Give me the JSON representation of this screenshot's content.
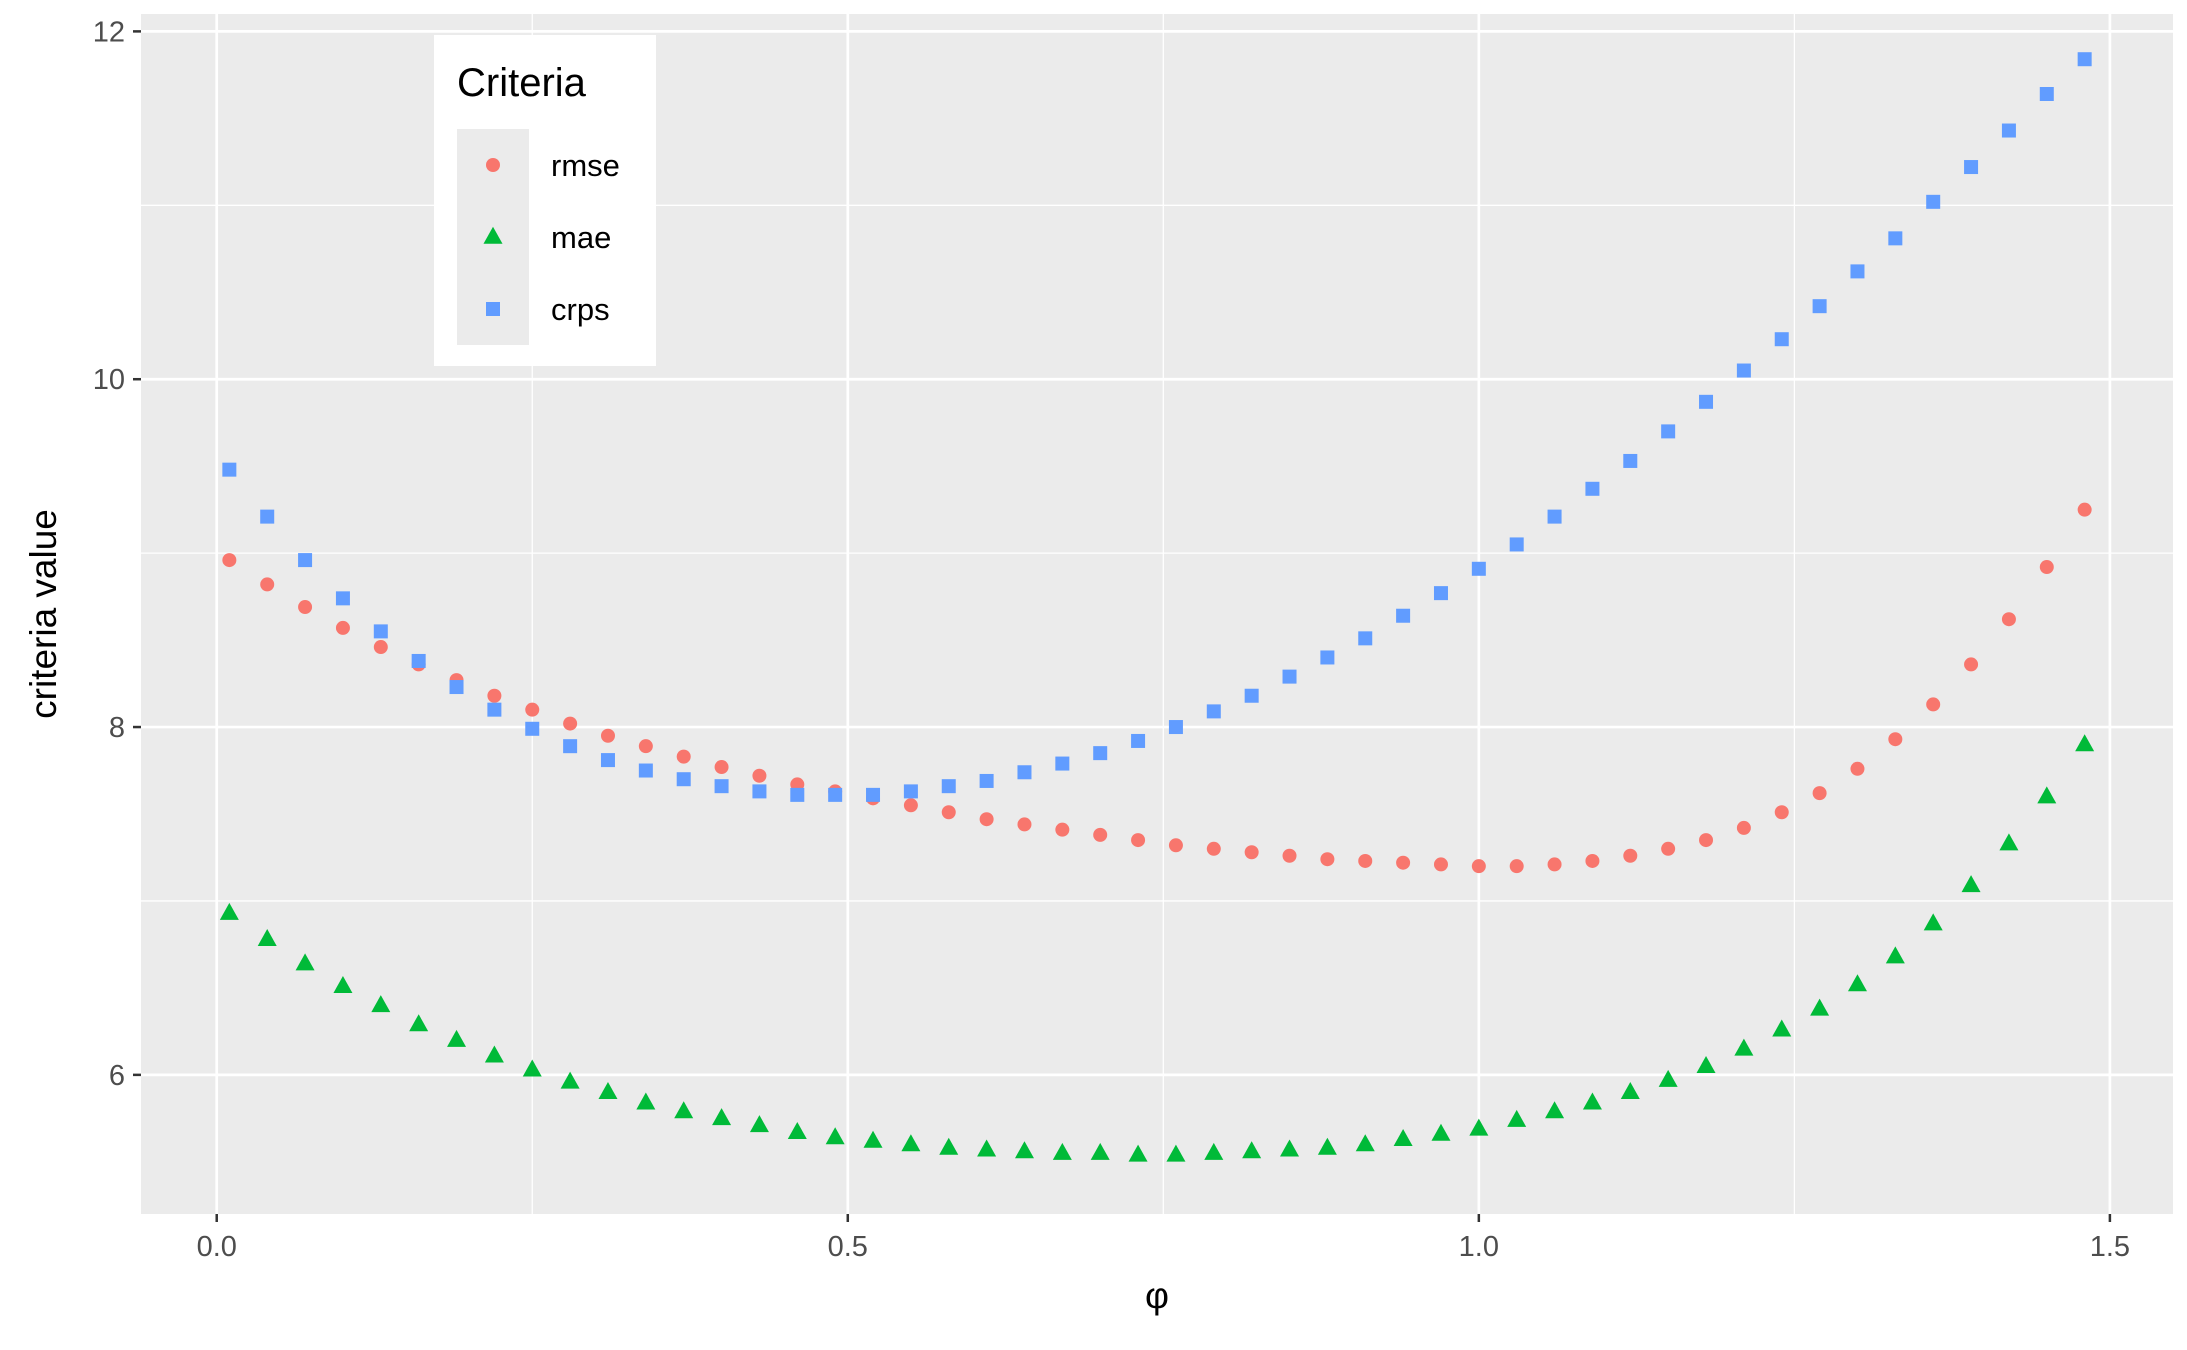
{
  "chart_data": {
    "type": "scatter",
    "xlabel": "φ",
    "ylabel": "criteria value",
    "xlim": [
      -0.06,
      1.55
    ],
    "ylim": [
      5.2,
      12.1
    ],
    "x_ticks": [
      0.0,
      0.5,
      1.0,
      1.5
    ],
    "x_tick_labels": [
      "0.0",
      "0.5",
      "1.0",
      "1.5"
    ],
    "y_ticks": [
      6,
      8,
      10,
      12
    ],
    "y_tick_labels": [
      "6",
      "8",
      "10",
      "12"
    ],
    "grid": true,
    "legend": {
      "title": "Criteria",
      "placement": "top-left"
    },
    "x": [
      0.01,
      0.04,
      0.07,
      0.1,
      0.13,
      0.16,
      0.19,
      0.22,
      0.25,
      0.28,
      0.31,
      0.34,
      0.37,
      0.4,
      0.43,
      0.46,
      0.49,
      0.52,
      0.55,
      0.58,
      0.61,
      0.64,
      0.67,
      0.7,
      0.73,
      0.76,
      0.79,
      0.82,
      0.85,
      0.88,
      0.91,
      0.94,
      0.97,
      1.0,
      1.03,
      1.06,
      1.09,
      1.12,
      1.15,
      1.18,
      1.21,
      1.24,
      1.27,
      1.3,
      1.33,
      1.36,
      1.39,
      1.42,
      1.45,
      1.48
    ],
    "series": [
      {
        "name": "rmse",
        "shape": "circle",
        "color": "#F8766D",
        "values": [
          8.96,
          8.82,
          8.69,
          8.57,
          8.46,
          8.36,
          8.27,
          8.18,
          8.1,
          8.02,
          7.95,
          7.89,
          7.83,
          7.77,
          7.72,
          7.67,
          7.63,
          7.59,
          7.55,
          7.51,
          7.47,
          7.44,
          7.41,
          7.38,
          7.35,
          7.32,
          7.3,
          7.28,
          7.26,
          7.24,
          7.23,
          7.22,
          7.21,
          7.2,
          7.2,
          7.21,
          7.23,
          7.26,
          7.3,
          7.35,
          7.42,
          7.51,
          7.62,
          7.76,
          7.93,
          8.13,
          8.36,
          8.62,
          8.92,
          9.25
        ]
      },
      {
        "name": "mae",
        "shape": "triangle",
        "color": "#00BA38",
        "values": [
          6.93,
          6.78,
          6.64,
          6.51,
          6.4,
          6.29,
          6.2,
          6.11,
          6.03,
          5.96,
          5.9,
          5.84,
          5.79,
          5.75,
          5.71,
          5.67,
          5.64,
          5.62,
          5.6,
          5.58,
          5.57,
          5.56,
          5.55,
          5.55,
          5.54,
          5.54,
          5.55,
          5.56,
          5.57,
          5.58,
          5.6,
          5.63,
          5.66,
          5.69,
          5.74,
          5.79,
          5.84,
          5.9,
          5.97,
          6.05,
          6.15,
          6.26,
          6.38,
          6.52,
          6.68,
          6.87,
          7.09,
          7.33,
          7.6,
          7.9
        ]
      },
      {
        "name": "crps",
        "shape": "square",
        "color": "#619CFF",
        "values": [
          9.48,
          9.21,
          8.96,
          8.74,
          8.55,
          8.38,
          8.23,
          8.1,
          7.99,
          7.89,
          7.81,
          7.75,
          7.7,
          7.66,
          7.63,
          7.61,
          7.61,
          7.61,
          7.63,
          7.66,
          7.69,
          7.74,
          7.79,
          7.85,
          7.92,
          8.0,
          8.09,
          8.18,
          8.29,
          8.4,
          8.51,
          8.64,
          8.77,
          8.91,
          9.05,
          9.21,
          9.37,
          9.53,
          9.7,
          9.87,
          10.05,
          10.23,
          10.42,
          10.62,
          10.81,
          11.02,
          11.22,
          11.43,
          11.64,
          11.84
        ]
      }
    ]
  }
}
